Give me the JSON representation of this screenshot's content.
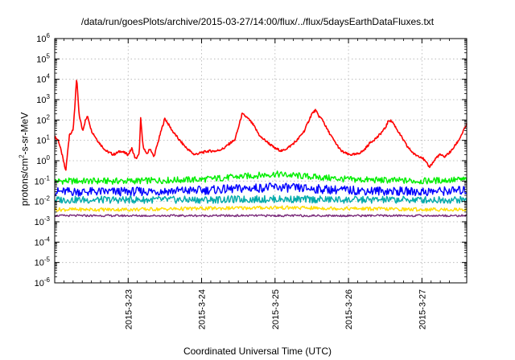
{
  "chart_data": {
    "type": "line",
    "title": "/data/run/goesPlots/archive/2015-03-27/14:00/flux/../flux/5daysEarthDataFluxes.txt",
    "xlabel": "Coordinated Universal Time (UTC)",
    "ylabel_prefix": "protons/cm",
    "ylabel_sup": "2",
    "ylabel_suffix": "-s-sr-MeV",
    "y_scale": "log",
    "ylim_exp": [
      -6,
      6
    ],
    "y_ticks": [
      {
        "base": "10",
        "exp": "6"
      },
      {
        "base": "10",
        "exp": "5"
      },
      {
        "base": "10",
        "exp": "4"
      },
      {
        "base": "10",
        "exp": "3"
      },
      {
        "base": "10",
        "exp": "2"
      },
      {
        "base": "10",
        "exp": "1"
      },
      {
        "base": "10",
        "exp": "0"
      },
      {
        "base": "10",
        "exp": "-1"
      },
      {
        "base": "10",
        "exp": "-2"
      },
      {
        "base": "10",
        "exp": "-3"
      },
      {
        "base": "10",
        "exp": "-4"
      },
      {
        "base": "10",
        "exp": "-5"
      },
      {
        "base": "10",
        "exp": "-6"
      }
    ],
    "x_domain_days": [
      0,
      5.61
    ],
    "x_ticks": [
      "2015-3-23",
      "2015-3-24",
      "2015-3-25",
      "2015-3-26",
      "2015-3-27"
    ],
    "x_tick_days": [
      1,
      2,
      3,
      4,
      5
    ],
    "grid": true,
    "series": [
      {
        "color": "#ff0000",
        "x": [
          0,
          0.05,
          0.1,
          0.15,
          0.2,
          0.25,
          0.28,
          0.3,
          0.33,
          0.38,
          0.42,
          0.45,
          0.5,
          0.6,
          0.7,
          0.8,
          0.9,
          1.0,
          1.05,
          1.1,
          1.15,
          1.17,
          1.2,
          1.25,
          1.3,
          1.35,
          1.45,
          1.5,
          1.55,
          1.6,
          1.7,
          1.8,
          1.9,
          2.0,
          2.1,
          2.2,
          2.3,
          2.4,
          2.45,
          2.5,
          2.55,
          2.6,
          2.65,
          2.7,
          2.8,
          2.9,
          3.0,
          3.1,
          3.2,
          3.3,
          3.4,
          3.5,
          3.55,
          3.6,
          3.65,
          3.7,
          3.8,
          3.9,
          4.0,
          4.1,
          4.2,
          4.3,
          4.4,
          4.5,
          4.55,
          4.6,
          4.65,
          4.7,
          4.8,
          4.9,
          5.0,
          5.1,
          5.15,
          5.2,
          5.25,
          5.3,
          5.4,
          5.5,
          5.61
        ],
        "y": [
          15,
          10,
          2,
          0.3,
          20,
          30,
          1000,
          12000,
          200,
          30,
          100,
          150,
          30,
          8,
          3,
          2,
          3,
          2,
          4,
          1.2,
          2,
          120,
          6,
          2,
          4,
          1.5,
          30,
          120,
          60,
          30,
          10,
          4,
          2,
          2.5,
          3,
          3,
          4,
          8,
          10,
          40,
          200,
          150,
          100,
          60,
          15,
          8,
          4,
          3,
          5,
          10,
          30,
          200,
          300,
          150,
          100,
          40,
          10,
          3,
          2,
          2,
          3,
          8,
          15,
          40,
          100,
          80,
          40,
          20,
          5,
          2,
          1.5,
          0.5,
          0.8,
          1.5,
          2,
          1.5,
          3,
          10,
          60
        ]
      },
      {
        "color": "#00ee00",
        "x": [
          0,
          1,
          2,
          3,
          4,
          5,
          5.61
        ],
        "y": [
          0.1,
          0.1,
          0.12,
          0.22,
          0.12,
          0.1,
          0.12
        ]
      },
      {
        "color": "#0000ff",
        "x": [
          0,
          1,
          2,
          3,
          4,
          5,
          5.61
        ],
        "y": [
          0.03,
          0.03,
          0.035,
          0.05,
          0.035,
          0.03,
          0.035
        ]
      },
      {
        "color": "#00aaaa",
        "x": [
          0,
          1,
          2,
          3,
          4,
          5,
          5.61
        ],
        "y": [
          0.012,
          0.012,
          0.012,
          0.013,
          0.012,
          0.012,
          0.012
        ]
      },
      {
        "color": "#ffdd00",
        "x": [
          0,
          1,
          2,
          3,
          4,
          5,
          5.61
        ],
        "y": [
          0.004,
          0.004,
          0.0045,
          0.005,
          0.0045,
          0.004,
          0.004
        ]
      },
      {
        "color": "#7a2a7a",
        "x": [
          0,
          1,
          2,
          3,
          4,
          5,
          5.61
        ],
        "y": [
          0.002,
          0.002,
          0.002,
          0.002,
          0.002,
          0.002,
          0.002
        ]
      }
    ]
  }
}
